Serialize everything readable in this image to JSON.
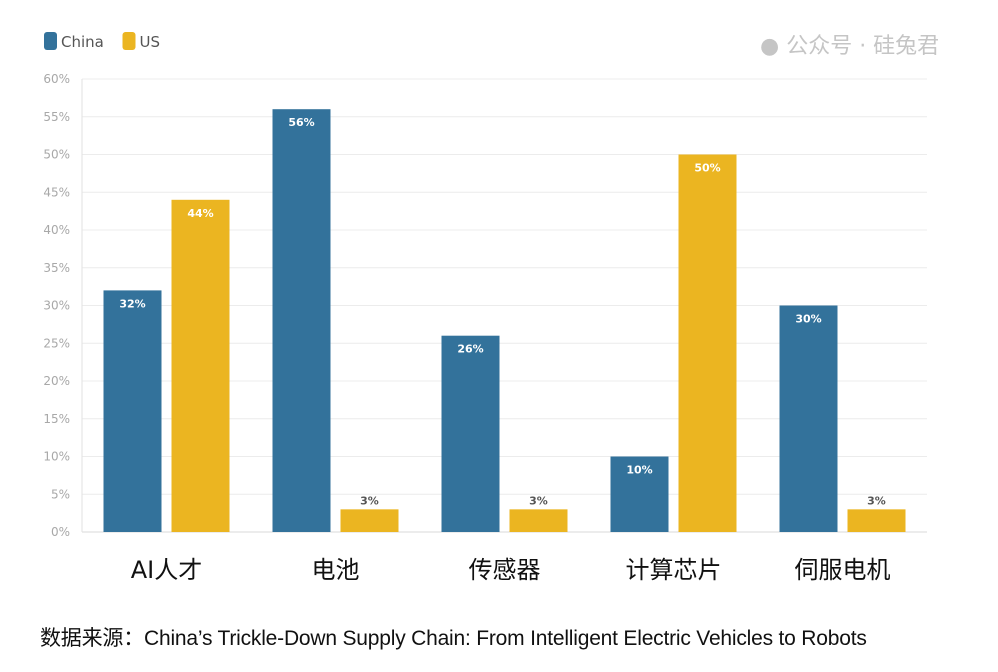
{
  "chart_data": {
    "type": "bar",
    "title": "",
    "xlabel": "",
    "ylabel": "",
    "categories": [
      "AI人才",
      "电池",
      "传感器",
      "计算芯片",
      "伺服电机"
    ],
    "series": [
      {
        "name": "China",
        "color": "#33729b",
        "values": [
          32,
          56,
          26,
          10,
          30
        ],
        "labels": [
          "32%",
          "56%",
          "26%",
          "10%",
          "30%"
        ]
      },
      {
        "name": "US",
        "color": "#ebb521",
        "values": [
          44,
          3,
          3,
          50,
          3
        ],
        "labels": [
          "44%",
          "3%",
          "3%",
          "50%",
          "3%"
        ]
      }
    ],
    "ylim": [
      0,
      60
    ],
    "yticks": [
      "0%",
      "5%",
      "10%",
      "15%",
      "20%",
      "25%",
      "30%",
      "35%",
      "40%",
      "45%",
      "50%",
      "55%",
      "60%"
    ],
    "grid": true,
    "legend": "top-left"
  },
  "source": "数据来源：China’s Trickle-Down Supply Chain: From Intelligent Electric Vehicles to Robots",
  "watermark": "公众号 · 硅兔君"
}
